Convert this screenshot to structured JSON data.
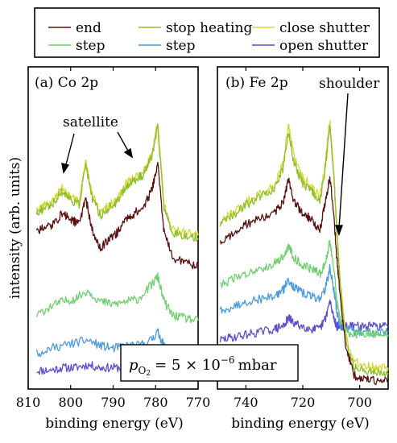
{
  "chart_data": [
    {
      "type": "line",
      "panel_label": "(a) Co 2p",
      "xlabel": "binding energy (eV)",
      "ylabel": "intensity (arb. units)",
      "xlim": [
        810,
        770
      ],
      "x_reversed": true,
      "x_ticks": [
        "810",
        "800",
        "790",
        "780",
        "770"
      ],
      "ylim": [
        0,
        100
      ],
      "grid": false,
      "legend_position": "top",
      "annotations": [
        {
          "text": "satellite",
          "targets_x": [
            802,
            787
          ]
        }
      ],
      "series": [
        {
          "name": "end",
          "color": "#5a1010",
          "x": [
            808,
            806,
            804,
            802,
            800,
            798,
            796.5,
            795,
            793,
            791,
            789,
            787,
            785,
            783,
            781,
            779.5,
            778,
            776,
            773,
            770
          ],
          "y": [
            56,
            57,
            58,
            62,
            60,
            58,
            68,
            56,
            49,
            53,
            55,
            60,
            62,
            64,
            70,
            80,
            55,
            46,
            44,
            43
          ]
        },
        {
          "name": "stop heating",
          "color": "#8fbf2a",
          "x": [
            808,
            806,
            804,
            802,
            800,
            798,
            796.5,
            795,
            793,
            791,
            789,
            787,
            785,
            783,
            781,
            779.5,
            778,
            776,
            773,
            770
          ],
          "y": [
            62,
            64,
            66,
            70,
            67,
            65,
            80,
            68,
            61,
            64,
            66,
            72,
            74,
            76,
            82,
            93,
            64,
            55,
            54,
            53
          ]
        },
        {
          "name": "close shutter",
          "color": "#d8d83a",
          "x": [
            808,
            806,
            804,
            802,
            800,
            798,
            796.5,
            795,
            793,
            791,
            789,
            787,
            785,
            783,
            781,
            779.5,
            778,
            776,
            773,
            770
          ],
          "y": [
            63,
            65,
            67,
            71,
            68,
            66,
            81,
            69,
            62,
            65,
            67,
            73,
            75,
            77,
            83,
            95,
            65,
            56,
            55,
            54
          ]
        },
        {
          "name": "step",
          "color": "#6ed06e",
          "x": [
            808,
            805,
            802,
            799,
            796,
            793,
            790,
            787,
            784,
            781,
            779.5,
            778,
            776,
            773,
            770
          ],
          "y": [
            25,
            28,
            30,
            31,
            34,
            30,
            29,
            30,
            31,
            36,
            39,
            30,
            25,
            24,
            23
          ]
        },
        {
          "name": "step",
          "color": "#4a9be0",
          "x": [
            808,
            805,
            802,
            799,
            796,
            793,
            790,
            787,
            784,
            781,
            779.5,
            778,
            776,
            773,
            770
          ],
          "y": [
            11,
            13,
            14,
            15,
            16,
            14,
            13,
            14,
            14,
            16,
            19,
            14,
            11,
            10,
            10
          ]
        },
        {
          "name": "open shutter",
          "color": "#5a4fd0",
          "x": [
            808,
            805,
            802,
            799,
            796,
            793,
            790,
            787,
            784,
            781,
            778,
            775,
            772,
            770
          ],
          "y": [
            5,
            5,
            6,
            6,
            7,
            6,
            6,
            6,
            6,
            7,
            7,
            6,
            6,
            6
          ]
        }
      ]
    },
    {
      "type": "line",
      "panel_label": "(b) Fe 2p",
      "xlabel": "binding energy (eV)",
      "xlim": [
        750,
        690
      ],
      "x_reversed": true,
      "x_ticks": [
        "740",
        "720",
        "700"
      ],
      "ylim": [
        0,
        100
      ],
      "grid": false,
      "annotations": [
        {
          "text": "shoulder",
          "targets_x": [
            708
          ]
        }
      ],
      "series": [
        {
          "name": "end",
          "color": "#5a1010",
          "x": [
            749,
            745,
            740,
            735,
            730,
            727,
            725,
            723,
            720,
            717,
            714,
            712,
            710.5,
            709,
            708,
            707,
            705,
            702,
            698,
            694,
            690
          ],
          "y": [
            52,
            54,
            58,
            60,
            62,
            66,
            74,
            66,
            62,
            60,
            56,
            66,
            76,
            60,
            45,
            34,
            14,
            3,
            2,
            1,
            1
          ]
        },
        {
          "name": "stop heating",
          "color": "#8fbf2a",
          "x": [
            749,
            745,
            740,
            735,
            730,
            727,
            725,
            723,
            720,
            717,
            714,
            712,
            710.5,
            709,
            708,
            707,
            705,
            702,
            698,
            694,
            690
          ],
          "y": [
            58,
            61,
            65,
            68,
            71,
            78,
            92,
            80,
            73,
            70,
            66,
            79,
            94,
            74,
            54,
            38,
            16,
            6,
            5,
            4,
            4
          ]
        },
        {
          "name": "close shutter",
          "color": "#d8d83a",
          "x": [
            749,
            745,
            740,
            735,
            730,
            727,
            725,
            723,
            720,
            717,
            714,
            712,
            710.5,
            709,
            708,
            707,
            705,
            702,
            698,
            694,
            690
          ],
          "y": [
            59,
            62,
            66,
            69,
            72,
            80,
            94,
            82,
            75,
            72,
            68,
            81,
            96,
            76,
            56,
            40,
            18,
            8,
            7,
            6,
            6
          ]
        },
        {
          "name": "step",
          "color": "#6ed06e",
          "x": [
            749,
            745,
            740,
            735,
            730,
            727,
            725,
            723,
            720,
            717,
            714,
            712,
            710.5,
            709,
            708,
            707,
            705,
            702,
            698,
            694,
            690
          ],
          "y": [
            36,
            38,
            40,
            42,
            44,
            46,
            50,
            46,
            43,
            42,
            40,
            44,
            52,
            42,
            30,
            24,
            19,
            18,
            18,
            18,
            18
          ]
        },
        {
          "name": "step",
          "color": "#4a9be0",
          "x": [
            749,
            745,
            740,
            735,
            730,
            727,
            725,
            723,
            720,
            717,
            714,
            712,
            710.5,
            709,
            708,
            707,
            705,
            702,
            698,
            694,
            690
          ],
          "y": [
            27,
            28,
            30,
            31,
            32,
            34,
            38,
            35,
            33,
            32,
            31,
            35,
            42,
            34,
            26,
            22,
            20,
            19,
            19,
            19,
            19
          ]
        },
        {
          "name": "open shutter",
          "color": "#5a4fd0",
          "x": [
            749,
            745,
            740,
            735,
            730,
            727,
            725,
            723,
            720,
            717,
            714,
            712,
            710.5,
            709,
            708,
            707,
            705,
            702,
            698,
            694,
            690
          ],
          "y": [
            16,
            17,
            18,
            19,
            20,
            21,
            24,
            22,
            21,
            20,
            20,
            24,
            30,
            24,
            21,
            21,
            21,
            21,
            21,
            21,
            21
          ]
        }
      ]
    }
  ],
  "inset_label": "p_O2 = 5 × 10^-6 mbar",
  "inset": {
    "p": "p",
    "sub": "O",
    "sub2": "2",
    "eq": "= 5 × 10",
    "exp": "−6",
    "unit": "mbar"
  },
  "legend": [
    {
      "label": "end",
      "color": "#5a1010"
    },
    {
      "label": "stop heating",
      "color": "#8fbf2a"
    },
    {
      "label": "close shutter",
      "color": "#d8d83a"
    },
    {
      "label": "step",
      "color": "#6ed06e"
    },
    {
      "label": "step",
      "color": "#4a9be0"
    },
    {
      "label": "open shutter",
      "color": "#5a4fd0"
    }
  ]
}
